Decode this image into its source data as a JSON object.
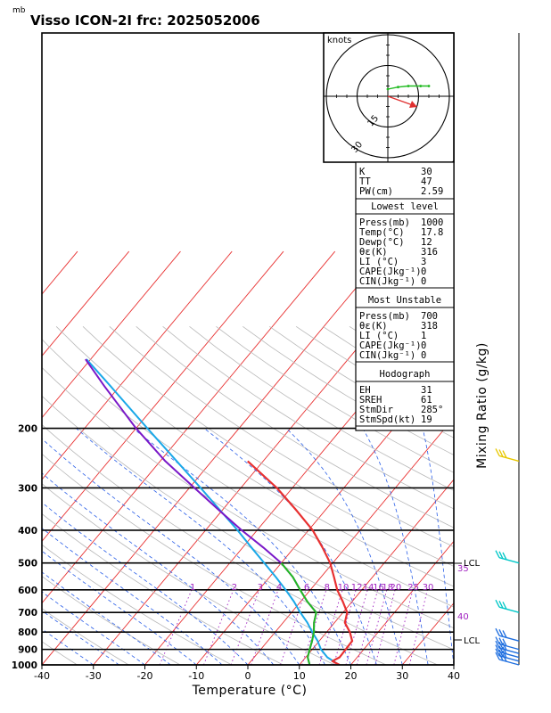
{
  "chart_data": {
    "type": "skew-t log-p sounding",
    "title": "Visso ICON-2I frc: 2025052006",
    "unit_label": "mb",
    "xlabel": "Temperature (°C)",
    "right_label": "Mixing Ratio (g/kg)",
    "x_range": [
      -40,
      40
    ],
    "x_ticks": [
      "-40",
      "-30",
      "-20",
      "-10",
      "0",
      "10",
      "20",
      "30",
      "40"
    ],
    "pressure_levels": [
      "200",
      "300",
      "400",
      "500",
      "600",
      "700",
      "800",
      "900",
      "1000"
    ],
    "mixing_ratio_labels": [
      "1",
      "2",
      "3",
      "4",
      "6",
      "8",
      "10",
      "12",
      "14",
      "16",
      "18",
      "20",
      "25",
      "30"
    ],
    "right_markers": [
      "35",
      "40"
    ],
    "lcl_label": "LCL",
    "temperature_profile": [
      {
        "p": 1000,
        "t": 17.8
      },
      {
        "p": 975,
        "t": 15.8
      },
      {
        "p": 950,
        "t": 16.6
      },
      {
        "p": 900,
        "t": 16.5
      },
      {
        "p": 850,
        "t": 16.4
      },
      {
        "p": 800,
        "t": 14.5
      },
      {
        "p": 750,
        "t": 12.0
      },
      {
        "p": 700,
        "t": 10.8
      },
      {
        "p": 650,
        "t": 8.2
      },
      {
        "p": 600,
        "t": 5.2
      },
      {
        "p": 550,
        "t": 2.5
      },
      {
        "p": 500,
        "t": -0.5
      },
      {
        "p": 450,
        "t": -4.5
      },
      {
        "p": 400,
        "t": -9.2
      },
      {
        "p": 350,
        "t": -15.5
      },
      {
        "p": 300,
        "t": -23.0
      },
      {
        "p": 250,
        "t": -33.0
      }
    ],
    "dewpoint_profile": [
      {
        "p": 1000,
        "t": 12.0
      },
      {
        "p": 950,
        "t": 10.4
      },
      {
        "p": 900,
        "t": 9.5
      },
      {
        "p": 850,
        "t": 8.6
      },
      {
        "p": 800,
        "t": 7.5
      },
      {
        "p": 750,
        "t": 6.0
      },
      {
        "p": 700,
        "t": 4.8
      },
      {
        "p": 650,
        "t": 1.3
      },
      {
        "p": 600,
        "t": -2.0
      },
      {
        "p": 550,
        "t": -5.5
      },
      {
        "p": 500,
        "t": -10.0
      },
      {
        "p": 450,
        "t": -16.0
      },
      {
        "p": 400,
        "t": -23.0
      },
      {
        "p": 350,
        "t": -30.5
      },
      {
        "p": 300,
        "t": -39.0
      },
      {
        "p": 250,
        "t": -49.0
      },
      {
        "p": 200,
        "t": -60.0
      },
      {
        "p": 150,
        "t": -73.0
      },
      {
        "p": 125,
        "t": -81.0
      }
    ],
    "parcel_profile": [
      {
        "p": 1000,
        "t": 14.5
      },
      {
        "p": 950,
        "t": 11.0
      },
      {
        "p": 900,
        "t": 8.5
      },
      {
        "p": 850,
        "t": 6.5
      },
      {
        "p": 800,
        "t": 4.0
      },
      {
        "p": 750,
        "t": 1.5
      },
      {
        "p": 700,
        "t": -1.5
      },
      {
        "p": 650,
        "t": -4.5
      },
      {
        "p": 600,
        "t": -8.0
      },
      {
        "p": 550,
        "t": -12.0
      },
      {
        "p": 500,
        "t": -16.5
      },
      {
        "p": 450,
        "t": -21.5
      },
      {
        "p": 400,
        "t": -27.0
      },
      {
        "p": 350,
        "t": -33.5
      },
      {
        "p": 300,
        "t": -41.0
      },
      {
        "p": 250,
        "t": -50.0
      },
      {
        "p": 200,
        "t": -61.0
      },
      {
        "p": 150,
        "t": -75.0
      },
      {
        "p": 125,
        "t": -84.0
      }
    ],
    "hodograph": {
      "units": "knots",
      "ring_labels": [
        "15",
        "30",
        "45"
      ],
      "wind_trace": [
        [
          0,
          0
        ],
        [
          -5,
          1
        ],
        [
          -10,
          1.5
        ],
        [
          -16,
          1.5
        ],
        [
          -20,
          1.5
        ]
      ],
      "storm_motion": {
        "dir": 285,
        "speed": 19
      }
    },
    "wind_barbs": [
      {
        "p": 1000,
        "color": "#1f6fe0"
      },
      {
        "p": 975,
        "color": "#1f6fe0"
      },
      {
        "p": 950,
        "color": "#1f6fe0"
      },
      {
        "p": 925,
        "color": "#1f6fe0"
      },
      {
        "p": 900,
        "color": "#1f6fe0"
      },
      {
        "p": 850,
        "color": "#1f6fe0"
      },
      {
        "p": 700,
        "color": "#00c8c8"
      },
      {
        "p": 500,
        "color": "#00c8c8"
      },
      {
        "p": 250,
        "color": "#e8c800"
      }
    ]
  },
  "indices": {
    "top": [
      {
        "label": "K",
        "value": "30"
      },
      {
        "label": "TT",
        "value": "47"
      },
      {
        "label": "PW(cm)",
        "value": "2.59"
      }
    ],
    "lowest": {
      "title": "Lowest level",
      "rows": [
        {
          "label": "Press(mb)",
          "value": "1000"
        },
        {
          "label": "Temp(°C)",
          "value": "17.8"
        },
        {
          "label": "Dewp(°C)",
          "value": "12"
        },
        {
          "label": "θε(K)",
          "value": "316"
        },
        {
          "label": "LI (°C)",
          "value": "3"
        },
        {
          "label": "CAPE(Jkg⁻¹)",
          "value": "0"
        },
        {
          "label": "CIN(Jkg⁻¹)",
          "value": "0"
        }
      ]
    },
    "unstable": {
      "title": "Most Unstable",
      "rows": [
        {
          "label": "Press(mb)",
          "value": "700"
        },
        {
          "label": "θε(K)",
          "value": "318"
        },
        {
          "label": "LI (°C)",
          "value": "1"
        },
        {
          "label": "CAPE(Jkg⁻¹)",
          "value": "0"
        },
        {
          "label": "CIN(Jkg⁻¹)",
          "value": "0"
        }
      ]
    },
    "hodo": {
      "title": "Hodograph",
      "rows": [
        {
          "label": "EH",
          "value": "31"
        },
        {
          "label": "SREH",
          "value": "61"
        },
        {
          "label": "StmDir",
          "value": "285°"
        },
        {
          "label": "StmSpd(kt)",
          "value": "19"
        }
      ]
    }
  },
  "colors": {
    "isotherm": "#e83030",
    "dry_adiabat": "#b8b8b8",
    "moist_adiabat": "#2a5ee8",
    "mixing_ratio": "#a020c0",
    "temperature": "#e83030",
    "dewpoint": "#22bb22",
    "parcel": "#7a18c8",
    "lifted": "#1aa8e8"
  }
}
